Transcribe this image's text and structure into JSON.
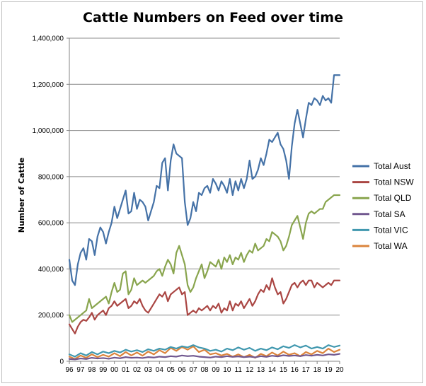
{
  "chart_data": {
    "type": "line",
    "title": "Cattle Numbers on Feed over time",
    "xlabel": "",
    "ylabel": "Number of Cattle",
    "x_tick_labels": [
      "96",
      "97",
      "98",
      "99",
      "00",
      "01",
      "02",
      "03",
      "04",
      "05",
      "06",
      "07",
      "08",
      "09",
      "10",
      "11",
      "12",
      "13",
      "14",
      "15",
      "16",
      "17",
      "18",
      "19",
      "20"
    ],
    "y_tick_labels": [
      "0",
      "200,000",
      "400,000",
      "600,000",
      "800,000",
      "1,000,000",
      "1,200,000",
      "1,400,000"
    ],
    "ylim": [
      0,
      1400000
    ],
    "xlim": [
      1996,
      2020
    ],
    "grid": "horizontal",
    "legend_position": "right",
    "series": [
      {
        "name": "Total Aust",
        "color": "#4572a7",
        "x": [
          1996,
          1996.25,
          1996.5,
          1996.75,
          1997,
          1997.25,
          1997.5,
          1997.75,
          1998,
          1998.25,
          1998.5,
          1998.75,
          1999,
          1999.25,
          1999.5,
          1999.75,
          2000,
          2000.25,
          2000.5,
          2000.75,
          2001,
          2001.25,
          2001.5,
          2001.75,
          2002,
          2002.25,
          2002.5,
          2002.75,
          2003,
          2003.25,
          2003.5,
          2003.75,
          2004,
          2004.25,
          2004.5,
          2004.75,
          2005,
          2005.25,
          2005.5,
          2005.75,
          2006,
          2006.25,
          2006.5,
          2006.75,
          2007,
          2007.25,
          2007.5,
          2007.75,
          2008,
          2008.25,
          2008.5,
          2008.75,
          2009,
          2009.25,
          2009.5,
          2009.75,
          2010,
          2010.25,
          2010.5,
          2010.75,
          2011,
          2011.25,
          2011.5,
          2011.75,
          2012,
          2012.25,
          2012.5,
          2012.75,
          2013,
          2013.25,
          2013.5,
          2013.75,
          2014,
          2014.25,
          2014.5,
          2014.75,
          2015,
          2015.25,
          2015.5,
          2015.75,
          2016,
          2016.25,
          2016.5,
          2016.75,
          2017,
          2017.25,
          2017.5,
          2017.75,
          2018,
          2018.25,
          2018.5,
          2018.75,
          2019,
          2019.25,
          2019.5,
          2019.75,
          2020
        ],
        "y": [
          440000,
          350000,
          330000,
          420000,
          470000,
          490000,
          440000,
          530000,
          520000,
          460000,
          540000,
          580000,
          560000,
          510000,
          560000,
          600000,
          670000,
          620000,
          660000,
          700000,
          740000,
          640000,
          650000,
          730000,
          660000,
          700000,
          690000,
          670000,
          610000,
          650000,
          690000,
          760000,
          750000,
          860000,
          880000,
          740000,
          870000,
          940000,
          900000,
          890000,
          880000,
          690000,
          590000,
          620000,
          690000,
          650000,
          730000,
          720000,
          750000,
          760000,
          730000,
          790000,
          770000,
          740000,
          780000,
          760000,
          730000,
          790000,
          720000,
          780000,
          740000,
          790000,
          750000,
          790000,
          870000,
          790000,
          800000,
          830000,
          880000,
          850000,
          900000,
          960000,
          950000,
          970000,
          990000,
          940000,
          920000,
          870000,
          790000,
          930000,
          1030000,
          1090000,
          1030000,
          970000,
          1050000,
          1120000,
          1110000,
          1140000,
          1130000,
          1110000,
          1150000,
          1130000,
          1140000,
          1120000,
          1240000,
          1240000,
          1240000
        ],
        "line_width": 2.2
      },
      {
        "name": "Total NSW",
        "color": "#aa4643",
        "x": [
          1996,
          1996.25,
          1996.5,
          1996.75,
          1997,
          1997.25,
          1997.5,
          1997.75,
          1998,
          1998.25,
          1998.5,
          1998.75,
          1999,
          1999.25,
          1999.5,
          1999.75,
          2000,
          2000.25,
          2000.5,
          2000.75,
          2001,
          2001.25,
          2001.5,
          2001.75,
          2002,
          2002.25,
          2002.5,
          2002.75,
          2003,
          2003.25,
          2003.5,
          2003.75,
          2004,
          2004.25,
          2004.5,
          2004.75,
          2005,
          2005.25,
          2005.5,
          2005.75,
          2006,
          2006.25,
          2006.5,
          2006.75,
          2007,
          2007.25,
          2007.5,
          2007.75,
          2008,
          2008.25,
          2008.5,
          2008.75,
          2009,
          2009.25,
          2009.5,
          2009.75,
          2010,
          2010.25,
          2010.5,
          2010.75,
          2011,
          2011.25,
          2011.5,
          2011.75,
          2012,
          2012.25,
          2012.5,
          2012.75,
          2013,
          2013.25,
          2013.5,
          2013.75,
          2014,
          2014.25,
          2014.5,
          2014.75,
          2015,
          2015.25,
          2015.5,
          2015.75,
          2016,
          2016.25,
          2016.5,
          2016.75,
          2017,
          2017.25,
          2017.5,
          2017.75,
          2018,
          2018.25,
          2018.5,
          2018.75,
          2019,
          2019.25,
          2019.5,
          2019.75,
          2020
        ],
        "y": [
          160000,
          140000,
          120000,
          150000,
          170000,
          180000,
          175000,
          190000,
          210000,
          180000,
          200000,
          210000,
          220000,
          200000,
          230000,
          240000,
          260000,
          240000,
          250000,
          260000,
          270000,
          230000,
          240000,
          260000,
          250000,
          270000,
          240000,
          220000,
          210000,
          230000,
          250000,
          270000,
          290000,
          280000,
          300000,
          260000,
          290000,
          300000,
          310000,
          320000,
          290000,
          300000,
          200000,
          210000,
          220000,
          210000,
          230000,
          220000,
          230000,
          240000,
          220000,
          240000,
          230000,
          250000,
          210000,
          230000,
          220000,
          260000,
          220000,
          250000,
          240000,
          260000,
          230000,
          250000,
          270000,
          240000,
          260000,
          290000,
          310000,
          300000,
          330000,
          310000,
          360000,
          320000,
          290000,
          300000,
          250000,
          270000,
          300000,
          330000,
          340000,
          320000,
          340000,
          350000,
          330000,
          350000,
          350000,
          320000,
          340000,
          330000,
          320000,
          330000,
          340000,
          330000,
          350000,
          350000,
          350000
        ],
        "line_width": 2.2
      },
      {
        "name": "Total QLD",
        "color": "#89a54e",
        "x": [
          1996,
          1996.25,
          1996.5,
          1996.75,
          1997,
          1997.25,
          1997.5,
          1997.75,
          1998,
          1998.25,
          1998.5,
          1998.75,
          1999,
          1999.25,
          1999.5,
          1999.75,
          2000,
          2000.25,
          2000.5,
          2000.75,
          2001,
          2001.25,
          2001.5,
          2001.75,
          2002,
          2002.25,
          2002.5,
          2002.75,
          2003,
          2003.25,
          2003.5,
          2003.75,
          2004,
          2004.25,
          2004.5,
          2004.75,
          2005,
          2005.25,
          2005.5,
          2005.75,
          2006,
          2006.25,
          2006.5,
          2006.75,
          2007,
          2007.25,
          2007.5,
          2007.75,
          2008,
          2008.25,
          2008.5,
          2008.75,
          2009,
          2009.25,
          2009.5,
          2009.75,
          2010,
          2010.25,
          2010.5,
          2010.75,
          2011,
          2011.25,
          2011.5,
          2011.75,
          2012,
          2012.25,
          2012.5,
          2012.75,
          2013,
          2013.25,
          2013.5,
          2013.75,
          2014,
          2014.25,
          2014.5,
          2014.75,
          2015,
          2015.25,
          2015.5,
          2015.75,
          2016,
          2016.25,
          2016.5,
          2016.75,
          2017,
          2017.25,
          2017.5,
          2017.75,
          2018,
          2018.25,
          2018.5,
          2018.75,
          2019,
          2019.25,
          2019.5,
          2019.75,
          2020
        ],
        "y": [
          200000,
          170000,
          180000,
          190000,
          200000,
          210000,
          220000,
          270000,
          230000,
          240000,
          250000,
          260000,
          270000,
          280000,
          250000,
          300000,
          340000,
          300000,
          310000,
          380000,
          390000,
          290000,
          310000,
          360000,
          330000,
          340000,
          350000,
          340000,
          350000,
          360000,
          370000,
          390000,
          400000,
          370000,
          410000,
          440000,
          420000,
          380000,
          470000,
          500000,
          460000,
          420000,
          330000,
          300000,
          320000,
          360000,
          390000,
          420000,
          360000,
          390000,
          430000,
          420000,
          410000,
          440000,
          400000,
          450000,
          430000,
          460000,
          420000,
          450000,
          440000,
          470000,
          430000,
          460000,
          480000,
          470000,
          510000,
          480000,
          490000,
          500000,
          530000,
          520000,
          560000,
          550000,
          540000,
          520000,
          480000,
          500000,
          540000,
          590000,
          610000,
          630000,
          580000,
          530000,
          600000,
          640000,
          650000,
          640000,
          650000,
          660000,
          660000,
          690000,
          700000,
          710000,
          720000,
          720000,
          720000
        ],
        "line_width": 2.2
      },
      {
        "name": "Total SA",
        "color": "#71588f",
        "x": [
          1996,
          1996.5,
          1997,
          1997.5,
          1998,
          1998.5,
          1999,
          1999.5,
          2000,
          2000.5,
          2001,
          2001.5,
          2002,
          2002.5,
          2003,
          2003.5,
          2004,
          2004.5,
          2005,
          2005.5,
          2006,
          2006.5,
          2007,
          2007.5,
          2008,
          2008.5,
          2009,
          2009.5,
          2010,
          2010.5,
          2011,
          2011.5,
          2012,
          2012.5,
          2013,
          2013.5,
          2014,
          2014.5,
          2015,
          2015.5,
          2016,
          2016.5,
          2017,
          2017.5,
          2018,
          2018.5,
          2019,
          2019.5,
          2020
        ],
        "y": [
          10000,
          8000,
          12000,
          10000,
          15000,
          12000,
          14000,
          11000,
          16000,
          13000,
          18000,
          15000,
          16000,
          14000,
          18000,
          16000,
          20000,
          18000,
          22000,
          20000,
          25000,
          22000,
          24000,
          20000,
          18000,
          16000,
          20000,
          18000,
          22000,
          19000,
          21000,
          18000,
          20000,
          17000,
          22000,
          19000,
          24000,
          21000,
          26000,
          23000,
          25000,
          22000,
          27000,
          24000,
          28000,
          25000,
          30000,
          28000,
          32000
        ],
        "line_width": 2.2
      },
      {
        "name": "Total VIC",
        "color": "#4198af",
        "x": [
          1996,
          1996.5,
          1997,
          1997.5,
          1998,
          1998.5,
          1999,
          1999.5,
          2000,
          2000.5,
          2001,
          2001.5,
          2002,
          2002.5,
          2003,
          2003.5,
          2004,
          2004.5,
          2005,
          2005.5,
          2006,
          2006.5,
          2007,
          2007.5,
          2008,
          2008.5,
          2009,
          2009.5,
          2010,
          2010.5,
          2011,
          2011.5,
          2012,
          2012.5,
          2013,
          2013.5,
          2014,
          2014.5,
          2015,
          2015.5,
          2016,
          2016.5,
          2017,
          2017.5,
          2018,
          2018.5,
          2019,
          2019.5,
          2020
        ],
        "y": [
          30000,
          20000,
          35000,
          25000,
          40000,
          30000,
          42000,
          35000,
          45000,
          38000,
          50000,
          42000,
          48000,
          40000,
          52000,
          45000,
          55000,
          50000,
          62000,
          55000,
          65000,
          60000,
          70000,
          60000,
          55000,
          45000,
          50000,
          42000,
          55000,
          48000,
          60000,
          50000,
          58000,
          45000,
          55000,
          48000,
          60000,
          52000,
          65000,
          58000,
          70000,
          60000,
          68000,
          55000,
          62000,
          55000,
          70000,
          62000,
          68000
        ],
        "line_width": 2.2
      },
      {
        "name": "Total WA",
        "color": "#db843d",
        "x": [
          1996,
          1996.5,
          1997,
          1997.5,
          1998,
          1998.5,
          1999,
          1999.5,
          2000,
          2000.5,
          2001,
          2001.5,
          2002,
          2002.5,
          2003,
          2003.5,
          2004,
          2004.5,
          2005,
          2005.5,
          2006,
          2006.5,
          2007,
          2007.5,
          2008,
          2008.5,
          2009,
          2009.5,
          2010,
          2010.5,
          2011,
          2011.5,
          2012,
          2012.5,
          2013,
          2013.5,
          2014,
          2014.5,
          2015,
          2015.5,
          2016,
          2016.5,
          2017,
          2017.5,
          2018,
          2018.5,
          2019,
          2019.5,
          2020
        ],
        "y": [
          20000,
          10000,
          25000,
          15000,
          30000,
          18000,
          28000,
          20000,
          35000,
          22000,
          40000,
          25000,
          38000,
          24000,
          42000,
          30000,
          48000,
          35000,
          58000,
          45000,
          62000,
          50000,
          65000,
          40000,
          50000,
          30000,
          35000,
          25000,
          32000,
          20000,
          30000,
          18000,
          28000,
          15000,
          32000,
          22000,
          38000,
          25000,
          42000,
          28000,
          35000,
          22000,
          40000,
          30000,
          45000,
          35000,
          55000,
          40000,
          50000
        ],
        "line_width": 2.2
      }
    ]
  }
}
